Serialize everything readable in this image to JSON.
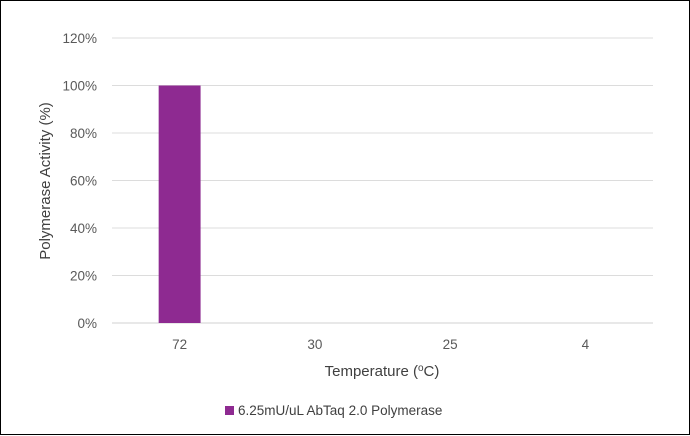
{
  "chart_data": {
    "type": "bar",
    "categories": [
      "72",
      "30",
      "25",
      "4"
    ],
    "series": [
      {
        "name": "6.25mU/uL AbTaq 2.0 Polymerase",
        "values": [
          100,
          0,
          0,
          0
        ],
        "color": "#8E2A91"
      }
    ],
    "xlabel": "Temperature (",
    "xlabel_sup": "o",
    "xlabel_suffix": "C)",
    "ylabel": "Polymerase Activity (%)",
    "ylim": [
      0,
      120
    ],
    "yticks": [
      "0%",
      "20%",
      "40%",
      "60%",
      "80%",
      "100%",
      "120%"
    ],
    "grid": true,
    "legend_position": "bottom"
  }
}
